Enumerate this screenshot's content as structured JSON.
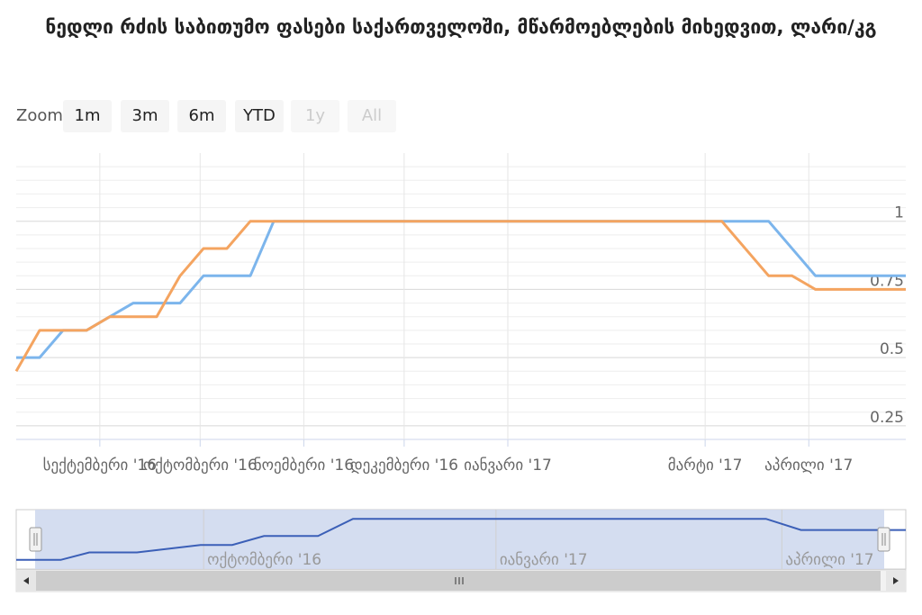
{
  "title": "ნედლი რძის საბითუმო ფასები საქართველოში, მწარმოებლების მიხედვით, ლარი/კგ",
  "zoom": {
    "label": "Zoom",
    "buttons": [
      {
        "label": "1m",
        "enabled": true
      },
      {
        "label": "3m",
        "enabled": true
      },
      {
        "label": "6m",
        "enabled": true
      },
      {
        "label": "YTD",
        "enabled": true
      },
      {
        "label": "1y",
        "enabled": false
      },
      {
        "label": "All",
        "enabled": false
      }
    ]
  },
  "colors": {
    "series_blue": "#7cb5ec",
    "series_orange": "#f4a460",
    "navigator_line": "#3b5fb7",
    "navigator_mask": "#cfd9ee",
    "grid": "#e6e6e6"
  },
  "chart_data": {
    "type": "line",
    "title": "ნედლი რძის საბითუმო ფასები საქართველოში, მწარმოებლების მიხედვით, ლარი/კგ",
    "x_axis": {
      "type": "datetime",
      "range": [
        "2016-08-07",
        "2017-04-30"
      ],
      "ticks": [
        {
          "date": "2016-09-01",
          "label": "სექტემბერი '16"
        },
        {
          "date": "2016-10-01",
          "label": "ოქტომბერი '16"
        },
        {
          "date": "2016-11-01",
          "label": "ნოემბერი '16"
        },
        {
          "date": "2016-12-01",
          "label": "დეკემბერი '16"
        },
        {
          "date": "2017-01-01",
          "label": "იანვარი '17"
        },
        {
          "date": "2017-03-01",
          "label": "მარტი '17"
        },
        {
          "date": "2017-04-01",
          "label": "აპრილი '17"
        }
      ]
    },
    "y_axis": {
      "range": [
        0.2,
        1.25
      ],
      "ticks": [
        {
          "value": 0.25,
          "label": "0.25"
        },
        {
          "value": 0.5,
          "label": "0.5"
        },
        {
          "value": 0.75,
          "label": "0.75"
        },
        {
          "value": 1,
          "label": "1"
        }
      ],
      "position": "right"
    },
    "grid": true,
    "series": [
      {
        "color_key": "series_blue",
        "points": [
          [
            "2016-08-07",
            0.5
          ],
          [
            "2016-08-14",
            0.5
          ],
          [
            "2016-08-21",
            0.6
          ],
          [
            "2016-08-28",
            0.6
          ],
          [
            "2016-09-04",
            0.65
          ],
          [
            "2016-09-11",
            0.7
          ],
          [
            "2016-09-18",
            0.7
          ],
          [
            "2016-09-25",
            0.7
          ],
          [
            "2016-10-02",
            0.8
          ],
          [
            "2016-10-09",
            0.8
          ],
          [
            "2016-10-16",
            0.8
          ],
          [
            "2016-10-23",
            1.0
          ],
          [
            "2017-03-06",
            1.0
          ],
          [
            "2017-03-20",
            1.0
          ],
          [
            "2017-04-03",
            0.8
          ],
          [
            "2017-04-30",
            0.8
          ]
        ]
      },
      {
        "color_key": "series_orange",
        "points": [
          [
            "2016-08-07",
            0.45
          ],
          [
            "2016-08-14",
            0.6
          ],
          [
            "2016-08-21",
            0.6
          ],
          [
            "2016-08-28",
            0.6
          ],
          [
            "2016-09-04",
            0.65
          ],
          [
            "2016-09-11",
            0.65
          ],
          [
            "2016-09-18",
            0.65
          ],
          [
            "2016-09-25",
            0.8
          ],
          [
            "2016-10-02",
            0.9
          ],
          [
            "2016-10-09",
            0.9
          ],
          [
            "2016-10-16",
            1.0
          ],
          [
            "2017-03-06",
            1.0
          ],
          [
            "2017-03-20",
            0.8
          ],
          [
            "2017-03-27",
            0.8
          ],
          [
            "2017-04-03",
            0.75
          ],
          [
            "2017-04-30",
            0.75
          ]
        ]
      }
    ],
    "navigator": {
      "range": [
        "2016-08-03",
        "2017-05-10"
      ],
      "selected": [
        "2016-08-07",
        "2017-04-30"
      ],
      "ticks": [
        {
          "date": "2016-10-01",
          "label": "ოქტომბერი '16"
        },
        {
          "date": "2017-01-01",
          "label": "იანვარი '17"
        },
        {
          "date": "2017-04-01",
          "label": "აპრილი '17"
        }
      ],
      "points": [
        [
          "2016-08-03",
          0.45
        ],
        [
          "2016-08-17",
          0.45
        ],
        [
          "2016-08-26",
          0.55
        ],
        [
          "2016-09-10",
          0.55
        ],
        [
          "2016-09-30",
          0.65
        ],
        [
          "2016-10-10",
          0.65
        ],
        [
          "2016-10-20",
          0.77
        ],
        [
          "2016-11-06",
          0.77
        ],
        [
          "2016-11-17",
          1.0
        ],
        [
          "2017-03-27",
          1.0
        ],
        [
          "2017-04-07",
          0.85
        ],
        [
          "2017-05-10",
          0.85
        ]
      ]
    }
  }
}
